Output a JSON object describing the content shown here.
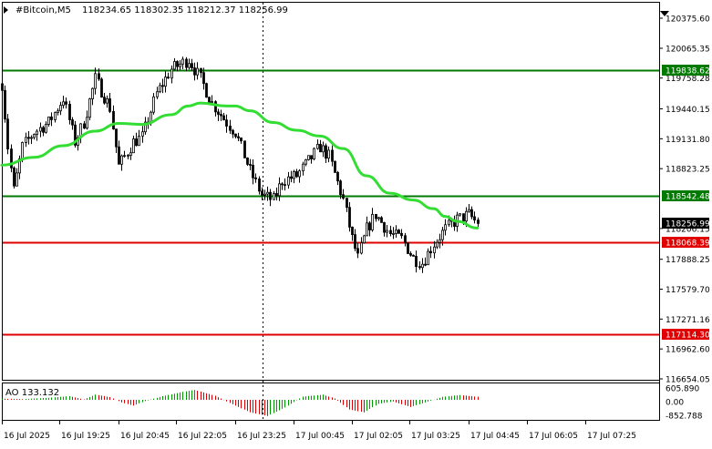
{
  "header": {
    "symbol": "#Bitcoin,M5",
    "ohlc": "118234.65 118302.35 118212.37 118256.99"
  },
  "price_axis": {
    "ticks": [
      "120375.60",
      "120065.35",
      "119758.28",
      "119440.15",
      "119131.80",
      "118823.25",
      "118206.15",
      "117888.25",
      "117579.70",
      "117271.16",
      "116962.60",
      "116654.05"
    ]
  },
  "level_labels": [
    {
      "text": "119838.62",
      "price": 119838.62,
      "kind": "resistance",
      "color": "#007a00"
    },
    {
      "text": "118542.48",
      "price": 118542.48,
      "kind": "resistance",
      "color": "#007a00"
    },
    {
      "text": "118068.39",
      "price": 118068.39,
      "kind": "support",
      "color": "#e00000"
    },
    {
      "text": "117114.30",
      "price": 117114.3,
      "kind": "support",
      "color": "#e00000"
    }
  ],
  "current_price": {
    "text": "118256.99",
    "price": 118256.99
  },
  "time_axis": {
    "labels": [
      "16 Jul 2025",
      "16 Jul 19:25",
      "16 Jul 20:45",
      "16 Jul 22:05",
      "16 Jul 23:25",
      "17 Jul 00:45",
      "17 Jul 02:05",
      "17 Jul 03:25",
      "17 Jul 04:45",
      "17 Jul 06:05",
      "17 Jul 07:25"
    ]
  },
  "indicator": {
    "label": "AO 133.132",
    "ticks": [
      "605.890",
      "0.00",
      "-852.788"
    ]
  },
  "chart_data": {
    "type": "candlestick",
    "timeframe": "M5",
    "bar_interval_minutes": 5,
    "ylim": [
      116654.05,
      120375.6
    ],
    "moving_average_color": "#33dd33",
    "horizontal_levels": [
      119838.62,
      118542.48,
      118068.39,
      117114.3
    ],
    "price_path": [
      {
        "time": "16 Jul 18:05",
        "price": 119700
      },
      {
        "time": "16 Jul 18:15",
        "price": 119050
      },
      {
        "time": "16 Jul 18:25",
        "price": 118600
      },
      {
        "time": "16 Jul 18:40",
        "price": 119050
      },
      {
        "time": "16 Jul 19:00",
        "price": 119200
      },
      {
        "time": "16 Jul 19:25",
        "price": 119300
      },
      {
        "time": "16 Jul 19:50",
        "price": 119550
      },
      {
        "time": "16 Jul 20:10",
        "price": 119100
      },
      {
        "time": "16 Jul 20:25",
        "price": 119300
      },
      {
        "time": "16 Jul 20:45",
        "price": 119750
      },
      {
        "time": "16 Jul 21:10",
        "price": 119450
      },
      {
        "time": "16 Jul 21:25",
        "price": 118850
      },
      {
        "time": "16 Jul 21:50",
        "price": 119100
      },
      {
        "time": "16 Jul 22:05",
        "price": 119150
      },
      {
        "time": "16 Jul 22:30",
        "price": 119600
      },
      {
        "time": "16 Jul 22:55",
        "price": 119850
      },
      {
        "time": "16 Jul 23:25",
        "price": 119950
      },
      {
        "time": "16 Jul 23:45",
        "price": 119750
      },
      {
        "time": "17 Jul 00:05",
        "price": 119500
      },
      {
        "time": "17 Jul 00:30",
        "price": 119300
      },
      {
        "time": "17 Jul 00:45",
        "price": 119200
      },
      {
        "time": "17 Jul 01:10",
        "price": 118800
      },
      {
        "time": "17 Jul 01:30",
        "price": 118550
      },
      {
        "time": "17 Jul 01:50",
        "price": 118500
      },
      {
        "time": "17 Jul 02:05",
        "price": 118700
      },
      {
        "time": "17 Jul 02:30",
        "price": 118750
      },
      {
        "time": "17 Jul 02:50",
        "price": 118900
      },
      {
        "time": "17 Jul 03:10",
        "price": 119050
      },
      {
        "time": "17 Jul 03:25",
        "price": 118950
      },
      {
        "time": "17 Jul 03:50",
        "price": 118500
      },
      {
        "time": "17 Jul 04:05",
        "price": 118100
      },
      {
        "time": "17 Jul 04:15",
        "price": 117900
      },
      {
        "time": "17 Jul 04:30",
        "price": 118200
      },
      {
        "time": "17 Jul 04:45",
        "price": 118350
      },
      {
        "time": "17 Jul 05:10",
        "price": 118150
      },
      {
        "time": "17 Jul 05:30",
        "price": 118100
      },
      {
        "time": "17 Jul 05:50",
        "price": 117900
      },
      {
        "time": "17 Jul 06:05",
        "price": 117850
      },
      {
        "time": "17 Jul 06:25",
        "price": 118050
      },
      {
        "time": "17 Jul 06:45",
        "price": 118200
      },
      {
        "time": "17 Jul 07:05",
        "price": 118300
      },
      {
        "time": "17 Jul 07:25",
        "price": 118350
      },
      {
        "time": "17 Jul 07:40",
        "price": 118257
      }
    ],
    "moving_average": [
      {
        "time": "16 Jul 18:05",
        "value": 118860
      },
      {
        "time": "16 Jul 19:00",
        "value": 118940
      },
      {
        "time": "16 Jul 19:50",
        "value": 119060
      },
      {
        "time": "16 Jul 20:45",
        "value": 119210
      },
      {
        "time": "16 Jul 21:25",
        "value": 119290
      },
      {
        "time": "16 Jul 22:05",
        "value": 119280
      },
      {
        "time": "16 Jul 22:55",
        "value": 119380
      },
      {
        "time": "16 Jul 23:25",
        "value": 119470
      },
      {
        "time": "16 Jul 23:45",
        "value": 119500
      },
      {
        "time": "17 Jul 00:30",
        "value": 119470
      },
      {
        "time": "17 Jul 00:45",
        "value": 119470
      },
      {
        "time": "17 Jul 01:10",
        "value": 119420
      },
      {
        "time": "17 Jul 01:50",
        "value": 119300
      },
      {
        "time": "17 Jul 02:30",
        "value": 119220
      },
      {
        "time": "17 Jul 03:10",
        "value": 119160
      },
      {
        "time": "17 Jul 03:50",
        "value": 119030
      },
      {
        "time": "17 Jul 04:30",
        "value": 118750
      },
      {
        "time": "17 Jul 05:10",
        "value": 118570
      },
      {
        "time": "17 Jul 05:50",
        "value": 118500
      },
      {
        "time": "17 Jul 06:25",
        "value": 118410
      },
      {
        "time": "17 Jul 06:45",
        "value": 118330
      },
      {
        "time": "17 Jul 07:05",
        "value": 118280
      },
      {
        "time": "17 Jul 07:40",
        "value": 118210
      }
    ],
    "ao_histogram": [
      {
        "time": "16 Jul 18:05",
        "value": 50
      },
      {
        "time": "16 Jul 18:40",
        "value": 30
      },
      {
        "time": "16 Jul 19:25",
        "value": 90
      },
      {
        "time": "16 Jul 20:00",
        "value": 160
      },
      {
        "time": "16 Jul 20:25",
        "value": 20
      },
      {
        "time": "16 Jul 20:45",
        "value": 230
      },
      {
        "time": "16 Jul 21:10",
        "value": 120
      },
      {
        "time": "16 Jul 21:30",
        "value": -120
      },
      {
        "time": "16 Jul 21:50",
        "value": -260
      },
      {
        "time": "16 Jul 22:10",
        "value": -60
      },
      {
        "time": "16 Jul 22:40",
        "value": 160
      },
      {
        "time": "16 Jul 23:20",
        "value": 380
      },
      {
        "time": "16 Jul 23:35",
        "value": 440
      },
      {
        "time": "17 Jul 00:10",
        "value": 180
      },
      {
        "time": "17 Jul 00:40",
        "value": -200
      },
      {
        "time": "17 Jul 01:10",
        "value": -560
      },
      {
        "time": "17 Jul 01:40",
        "value": -720
      },
      {
        "time": "17 Jul 02:10",
        "value": -340
      },
      {
        "time": "17 Jul 02:40",
        "value": 140
      },
      {
        "time": "17 Jul 03:15",
        "value": 230
      },
      {
        "time": "17 Jul 03:35",
        "value": 60
      },
      {
        "time": "17 Jul 04:00",
        "value": -430
      },
      {
        "time": "17 Jul 04:25",
        "value": -560
      },
      {
        "time": "17 Jul 04:50",
        "value": -180
      },
      {
        "time": "17 Jul 05:15",
        "value": -80
      },
      {
        "time": "17 Jul 05:45",
        "value": -320
      },
      {
        "time": "17 Jul 06:10",
        "value": -120
      },
      {
        "time": "17 Jul 06:40",
        "value": 130
      },
      {
        "time": "17 Jul 07:10",
        "value": 210
      },
      {
        "time": "17 Jul 07:40",
        "value": 133.132
      }
    ],
    "ao_ylim": [
      -852.788,
      605.89
    ]
  }
}
